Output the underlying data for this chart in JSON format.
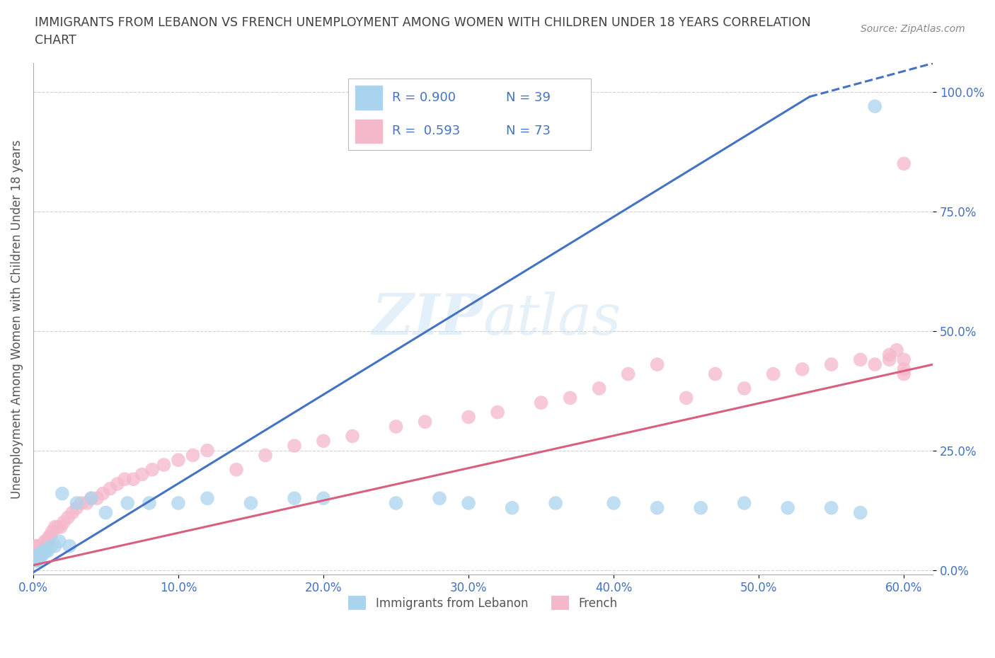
{
  "title_line1": "IMMIGRANTS FROM LEBANON VS FRENCH UNEMPLOYMENT AMONG WOMEN WITH CHILDREN UNDER 18 YEARS CORRELATION",
  "title_line2": "CHART",
  "source_text": "Source: ZipAtlas.com",
  "ylabel": "Unemployment Among Women with Children Under 18 years",
  "watermark_part1": "ZIP",
  "watermark_part2": "atlas",
  "xlim": [
    0,
    0.62
  ],
  "ylim": [
    -0.01,
    1.06
  ],
  "xticks": [
    0.0,
    0.1,
    0.2,
    0.3,
    0.4,
    0.5,
    0.6
  ],
  "xticklabels": [
    "0.0%",
    "10.0%",
    "20.0%",
    "30.0%",
    "40.0%",
    "50.0%",
    "60.0%"
  ],
  "yticks": [
    0.0,
    0.25,
    0.5,
    0.75,
    1.0
  ],
  "yticklabels": [
    "0.0%",
    "25.0%",
    "50.0%",
    "75.0%",
    "100.0%"
  ],
  "color_lebanon": "#aad4ed",
  "color_french": "#f5b8cb",
  "color_line_lebanon": "#4472c4",
  "color_line_french": "#d95f7f",
  "color_axis_text": "#4472c4",
  "background_color": "#ffffff",
  "grid_color": "#cccccc",
  "legend_label1": "Immigrants from Lebanon",
  "legend_label2": "French",
  "leb_line_x0": 0.0,
  "leb_line_y0": -0.005,
  "leb_line_x1": 0.535,
  "leb_line_y1": 0.99,
  "leb_line_ext_x1": 0.62,
  "leb_line_ext_y1": 1.06,
  "fr_line_x0": 0.0,
  "fr_line_y0": 0.01,
  "fr_line_x1": 0.62,
  "fr_line_y1": 0.43,
  "leb_x": [
    0.001,
    0.002,
    0.002,
    0.003,
    0.004,
    0.005,
    0.006,
    0.007,
    0.008,
    0.009,
    0.01,
    0.012,
    0.015,
    0.018,
    0.02,
    0.025,
    0.03,
    0.04,
    0.05,
    0.065,
    0.08,
    0.1,
    0.12,
    0.15,
    0.18,
    0.2,
    0.25,
    0.28,
    0.3,
    0.33,
    0.36,
    0.4,
    0.43,
    0.46,
    0.49,
    0.52,
    0.55,
    0.57,
    0.58
  ],
  "leb_y": [
    0.02,
    0.02,
    0.03,
    0.02,
    0.03,
    0.03,
    0.03,
    0.04,
    0.04,
    0.04,
    0.04,
    0.05,
    0.05,
    0.06,
    0.16,
    0.05,
    0.14,
    0.15,
    0.12,
    0.14,
    0.14,
    0.14,
    0.15,
    0.14,
    0.15,
    0.15,
    0.14,
    0.15,
    0.14,
    0.13,
    0.14,
    0.14,
    0.13,
    0.13,
    0.14,
    0.13,
    0.13,
    0.12,
    0.97
  ],
  "fr_x": [
    0.001,
    0.001,
    0.001,
    0.002,
    0.002,
    0.002,
    0.003,
    0.003,
    0.003,
    0.004,
    0.004,
    0.005,
    0.005,
    0.006,
    0.006,
    0.007,
    0.008,
    0.009,
    0.01,
    0.011,
    0.012,
    0.013,
    0.015,
    0.017,
    0.019,
    0.021,
    0.024,
    0.027,
    0.03,
    0.033,
    0.037,
    0.04,
    0.044,
    0.048,
    0.053,
    0.058,
    0.063,
    0.069,
    0.075,
    0.082,
    0.09,
    0.1,
    0.11,
    0.12,
    0.14,
    0.16,
    0.18,
    0.2,
    0.22,
    0.25,
    0.27,
    0.3,
    0.32,
    0.35,
    0.37,
    0.39,
    0.41,
    0.43,
    0.45,
    0.47,
    0.49,
    0.51,
    0.53,
    0.55,
    0.57,
    0.58,
    0.59,
    0.59,
    0.595,
    0.6,
    0.6,
    0.6,
    0.6
  ],
  "fr_y": [
    0.02,
    0.03,
    0.04,
    0.02,
    0.04,
    0.05,
    0.03,
    0.04,
    0.05,
    0.03,
    0.05,
    0.03,
    0.04,
    0.04,
    0.05,
    0.05,
    0.06,
    0.06,
    0.06,
    0.07,
    0.07,
    0.08,
    0.09,
    0.09,
    0.09,
    0.1,
    0.11,
    0.12,
    0.13,
    0.14,
    0.14,
    0.15,
    0.15,
    0.16,
    0.17,
    0.18,
    0.19,
    0.19,
    0.2,
    0.21,
    0.22,
    0.23,
    0.24,
    0.25,
    0.21,
    0.24,
    0.26,
    0.27,
    0.28,
    0.3,
    0.31,
    0.32,
    0.33,
    0.35,
    0.36,
    0.38,
    0.41,
    0.43,
    0.36,
    0.41,
    0.38,
    0.41,
    0.42,
    0.43,
    0.44,
    0.43,
    0.44,
    0.45,
    0.46,
    0.44,
    0.42,
    0.41,
    0.85
  ]
}
